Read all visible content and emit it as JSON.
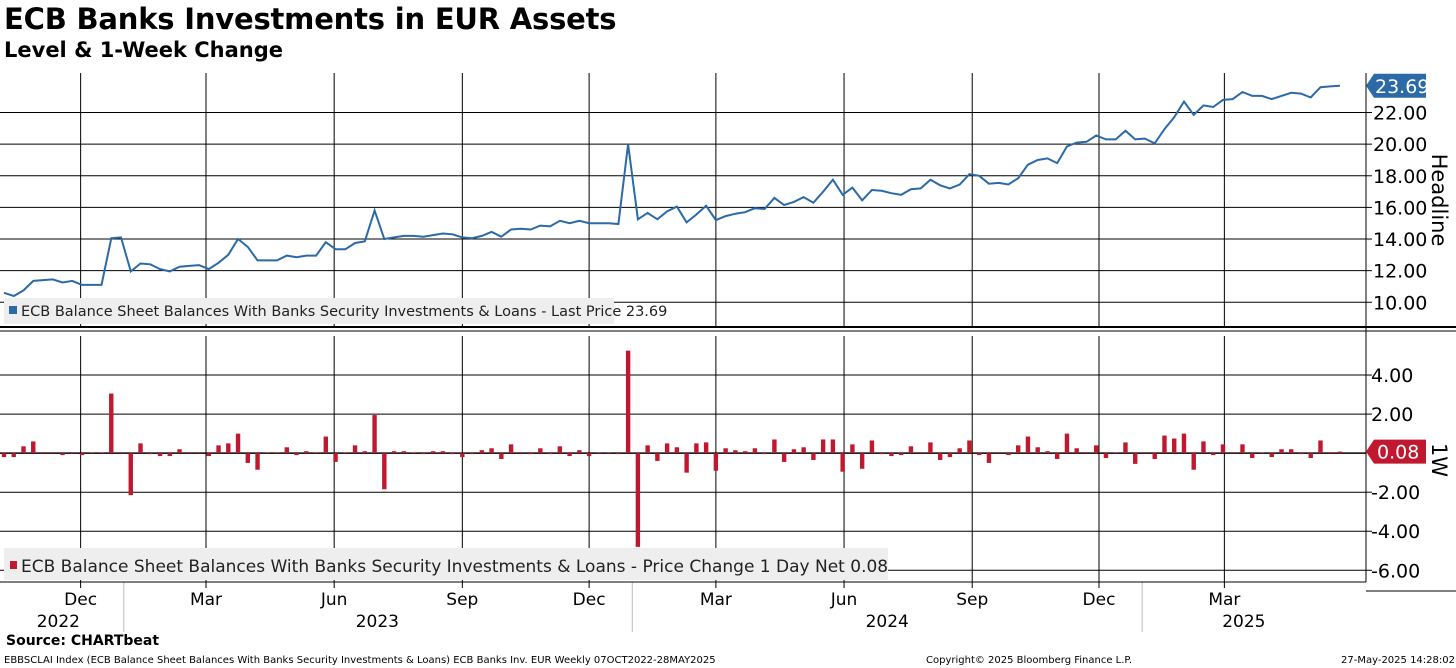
{
  "header": {
    "title": "ECB Banks Investments in EUR Assets",
    "subtitle": "Level & 1-Week Change"
  },
  "footer": {
    "source": "Source: CHARTbeat",
    "ticker_info": "EBBSCLAI Index (ECB Balance Sheet Balances With Banks Security Investments & Loans) ECB Banks Inv. EUR  Weekly 07OCT2022-28MAY2025",
    "copyright": "Copyright© 2025 Bloomberg Finance L.P.",
    "timestamp": "27-May-2025 14:28:02"
  },
  "colors": {
    "line": "#2b6aa6",
    "bar": "#c0192f",
    "grid": "#000000"
  },
  "chart_data": [
    {
      "type": "line",
      "panel": "top",
      "title": "ECB Banks Investments in EUR Assets",
      "ylabel": "Headline",
      "ylim": [
        8.5,
        24.5
      ],
      "yticks": [
        10,
        12,
        14,
        16,
        18,
        20,
        22
      ],
      "ytick_labels": [
        "10.00",
        "12.00",
        "14.00",
        "16.00",
        "18.00",
        "20.00",
        "22.00"
      ],
      "last_value": 23.69,
      "last_value_label": "23.69",
      "legend": "ECB Balance Sheet Balances With Banks Security Investments & Loans - Last Price 23.69",
      "x_start": "2022-10-07",
      "x_end": "2025-05-23",
      "frequency": "weekly",
      "values": [
        10.6,
        10.4,
        10.75,
        11.35,
        11.4,
        11.45,
        11.25,
        11.35,
        11.1,
        11.1,
        11.1,
        14.05,
        14.1,
        11.95,
        12.45,
        12.4,
        12.1,
        11.95,
        12.25,
        12.3,
        12.35,
        12.1,
        12.5,
        13.0,
        14.0,
        13.5,
        12.65,
        12.65,
        12.65,
        12.95,
        12.85,
        12.95,
        12.95,
        13.8,
        13.35,
        13.35,
        13.75,
        13.85,
        15.8,
        14.0,
        14.1,
        14.2,
        14.2,
        14.15,
        14.25,
        14.35,
        14.3,
        14.1,
        14.05,
        14.2,
        14.45,
        14.15,
        14.6,
        14.65,
        14.6,
        14.85,
        14.8,
        15.15,
        15.0,
        15.15,
        15.0,
        15.0,
        15.0,
        14.95,
        20.0,
        15.25,
        15.65,
        15.25,
        15.75,
        16.05,
        15.05,
        15.55,
        16.1,
        15.2,
        15.45,
        15.6,
        15.7,
        15.95,
        15.9,
        16.6,
        16.15,
        16.35,
        16.65,
        16.3,
        17.0,
        17.75,
        16.8,
        17.25,
        16.45,
        17.1,
        17.05,
        16.9,
        16.8,
        17.15,
        17.2,
        17.75,
        17.4,
        17.2,
        17.45,
        18.1,
        18.0,
        17.5,
        17.55,
        17.45,
        17.85,
        18.7,
        19.0,
        19.1,
        18.8,
        19.85,
        20.1,
        20.15,
        20.55,
        20.3,
        20.3,
        20.85,
        20.3,
        20.35,
        20.05,
        20.95,
        21.7,
        22.7,
        21.85,
        22.45,
        22.35,
        22.8,
        22.85,
        23.3,
        23.05,
        23.05,
        22.85,
        23.05,
        23.25,
        23.2,
        22.95,
        23.6,
        23.65,
        23.69
      ]
    },
    {
      "type": "bar",
      "panel": "bottom",
      "ylabel": "1W",
      "ylim": [
        -6.6,
        6.0
      ],
      "yticks": [
        -6,
        -4,
        -2,
        2,
        4
      ],
      "ytick_labels": [
        "-6.00",
        "-4.00",
        "-2.00",
        "2.00",
        "4.00"
      ],
      "last_value": 0.08,
      "last_value_label": "0.08",
      "legend": "ECB Balance Sheet Balances With Banks Security Investments & Loans - Price Change 1 Day Net 0.08",
      "values": [
        -0.2,
        -0.2,
        0.35,
        0.6,
        0.05,
        0.05,
        -0.1,
        0.05,
        -0.1,
        0.0,
        0.0,
        3.05,
        0.05,
        -2.15,
        0.5,
        -0.05,
        -0.15,
        -0.15,
        0.2,
        0.05,
        0.05,
        -0.15,
        0.4,
        0.5,
        1.0,
        -0.5,
        -0.85,
        0.0,
        0.0,
        0.3,
        -0.1,
        0.1,
        0.0,
        0.85,
        -0.45,
        0.0,
        0.4,
        0.1,
        1.95,
        -1.85,
        0.1,
        0.1,
        0.0,
        -0.05,
        0.1,
        0.1,
        -0.05,
        -0.2,
        -0.05,
        0.15,
        0.25,
        -0.3,
        0.45,
        0.05,
        -0.05,
        0.25,
        -0.05,
        0.35,
        -0.15,
        0.15,
        -0.15,
        0.0,
        0.0,
        -0.05,
        5.25,
        -4.8,
        0.4,
        -0.4,
        0.5,
        0.3,
        -1.0,
        0.5,
        0.55,
        -0.9,
        0.25,
        0.15,
        0.1,
        0.25,
        -0.05,
        0.7,
        -0.45,
        0.2,
        0.3,
        -0.35,
        0.7,
        0.7,
        -0.95,
        0.45,
        -0.8,
        0.65,
        -0.05,
        -0.15,
        -0.1,
        0.35,
        0.05,
        0.55,
        -0.35,
        -0.2,
        0.25,
        0.65,
        -0.1,
        -0.5,
        0.05,
        -0.1,
        0.4,
        0.85,
        0.3,
        0.1,
        -0.3,
        1.0,
        0.25,
        0.05,
        0.4,
        -0.25,
        0.0,
        0.55,
        -0.55,
        0.05,
        -0.3,
        0.9,
        0.75,
        1.0,
        -0.85,
        0.6,
        -0.1,
        0.45,
        0.05,
        0.45,
        -0.25,
        0.0,
        -0.2,
        0.2,
        0.2,
        -0.05,
        -0.25,
        0.65,
        0.05,
        0.08
      ]
    }
  ],
  "x_axis": {
    "month_ticks": [
      {
        "date": "2022-12-01",
        "label": "Dec"
      },
      {
        "date": "2023-03-01",
        "label": "Mar"
      },
      {
        "date": "2023-06-01",
        "label": "Jun"
      },
      {
        "date": "2023-09-01",
        "label": "Sep"
      },
      {
        "date": "2023-12-01",
        "label": "Dec"
      },
      {
        "date": "2024-03-01",
        "label": "Mar"
      },
      {
        "date": "2024-06-01",
        "label": "Jun"
      },
      {
        "date": "2024-09-01",
        "label": "Sep"
      },
      {
        "date": "2024-12-01",
        "label": "Dec"
      },
      {
        "date": "2025-03-01",
        "label": "Mar"
      }
    ],
    "year_labels": [
      {
        "date": "2022-11-15",
        "label": "2022"
      },
      {
        "date": "2023-07-02",
        "label": "2023"
      },
      {
        "date": "2024-07-02",
        "label": "2024"
      },
      {
        "date": "2025-03-15",
        "label": "2025"
      }
    ],
    "year_separators": [
      "2023-01-01",
      "2024-01-01",
      "2025-01-01"
    ]
  }
}
